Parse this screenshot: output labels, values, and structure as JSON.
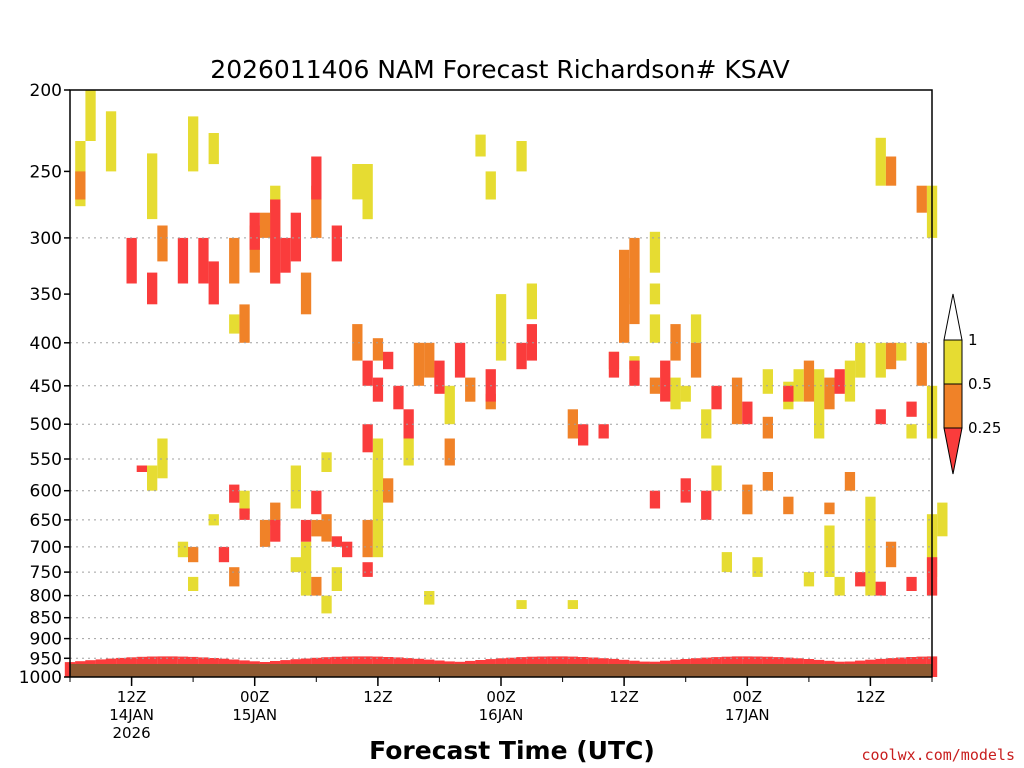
{
  "chart_data": {
    "type": "heatmap",
    "title": "2026011406 NAM Forecast Richardson# KSAV",
    "xlabel": "Forecast Time (UTC)",
    "credit": "coolwx.com/models",
    "y_scale": "log",
    "y_range": [
      1000,
      200
    ],
    "y_ticks": [
      200,
      250,
      300,
      350,
      400,
      450,
      500,
      550,
      600,
      650,
      700,
      750,
      800,
      850,
      900,
      950,
      1000
    ],
    "y_grid": [
      300,
      400,
      450,
      500,
      550,
      600,
      650,
      700,
      750,
      800,
      850,
      900,
      950
    ],
    "x_ticks": [
      {
        "hour": 6,
        "lines": [
          "12Z",
          "14JAN",
          "2026"
        ]
      },
      {
        "hour": 18,
        "lines": [
          "00Z",
          "15JAN"
        ]
      },
      {
        "hour": 30,
        "lines": [
          "12Z"
        ]
      },
      {
        "hour": 42,
        "lines": [
          "00Z",
          "16JAN"
        ]
      },
      {
        "hour": 54,
        "lines": [
          "12Z"
        ]
      },
      {
        "hour": 66,
        "lines": [
          "00Z",
          "17JAN"
        ]
      },
      {
        "hour": 78,
        "lines": [
          "12Z"
        ]
      }
    ],
    "x_range_hours": [
      0,
      84
    ],
    "legend": {
      "placement": "right",
      "levels": [
        "1",
        "0.5",
        "0.25"
      ],
      "colors": {
        "gt1": "#ffffff",
        "0.5-1": "#e6dc32",
        "0.25-0.5": "#f08228",
        "lt0.25": "#fa3c3c"
      }
    },
    "ground_color": "#8c5a32",
    "cells": [
      {
        "c": "Y",
        "t": [
          [
            2,
            200,
            230
          ],
          [
            4,
            212,
            250
          ],
          [
            1,
            230,
            275
          ],
          [
            8,
            238,
            285
          ],
          [
            12,
            215,
            250
          ],
          [
            14,
            225,
            245
          ],
          [
            20,
            260,
            300
          ],
          [
            28,
            245,
            270
          ],
          [
            29,
            245,
            285
          ],
          [
            16,
            370,
            390
          ],
          [
            40,
            226,
            240
          ],
          [
            57,
            295,
            330
          ],
          [
            54,
            335,
            360
          ],
          [
            57,
            340,
            360
          ],
          [
            42,
            350,
            420
          ],
          [
            45,
            340,
            375
          ],
          [
            37,
            450,
            500
          ],
          [
            33,
            520,
            560
          ],
          [
            30,
            520,
            600
          ],
          [
            25,
            540,
            570
          ],
          [
            22,
            560,
            630
          ],
          [
            17,
            600,
            640
          ],
          [
            14,
            640,
            660
          ],
          [
            11,
            690,
            720
          ],
          [
            23,
            690,
            800
          ],
          [
            30,
            550,
            720
          ],
          [
            26,
            740,
            790
          ],
          [
            22,
            720,
            750
          ],
          [
            55,
            415,
            430
          ],
          [
            59,
            440,
            480
          ],
          [
            60,
            450,
            470
          ],
          [
            62,
            480,
            520
          ],
          [
            63,
            560,
            600
          ],
          [
            70,
            445,
            480
          ],
          [
            73,
            430,
            520
          ],
          [
            76,
            420,
            470
          ],
          [
            77,
            400,
            440
          ],
          [
            79,
            400,
            440
          ],
          [
            81,
            400,
            420
          ],
          [
            84,
            450,
            520
          ],
          [
            84,
            260,
            300
          ],
          [
            79,
            228,
            260
          ],
          [
            78,
            610,
            800
          ],
          [
            74,
            660,
            760
          ],
          [
            84,
            640,
            760
          ],
          [
            64,
            710,
            750
          ],
          [
            67,
            720,
            760
          ],
          [
            72,
            750,
            780
          ],
          [
            75,
            760,
            800
          ],
          [
            35,
            790,
            820
          ],
          [
            44,
            810,
            830
          ],
          [
            49,
            810,
            830
          ],
          [
            25,
            800,
            840
          ],
          [
            41,
            250,
            270
          ],
          [
            44,
            230,
            250
          ],
          [
            57,
            370,
            400
          ],
          [
            61,
            370,
            400
          ],
          [
            71,
            430,
            470
          ],
          [
            82,
            500,
            520
          ],
          [
            12,
            760,
            790
          ],
          [
            9,
            520,
            580
          ],
          [
            8,
            560,
            600
          ],
          [
            68,
            430,
            460
          ],
          [
            85,
            620,
            680
          ]
        ]
      },
      {
        "c": "O",
        "t": [
          [
            1,
            250,
            270
          ],
          [
            9,
            290,
            320
          ],
          [
            19,
            280,
            300
          ],
          [
            18,
            290,
            330
          ],
          [
            23,
            330,
            370
          ],
          [
            24,
            260,
            300
          ],
          [
            30,
            395,
            420
          ],
          [
            34,
            400,
            450
          ],
          [
            35,
            400,
            440
          ],
          [
            37,
            520,
            560
          ],
          [
            29,
            650,
            720
          ],
          [
            24,
            650,
            680
          ],
          [
            20,
            620,
            660
          ],
          [
            19,
            650,
            700
          ],
          [
            12,
            700,
            730
          ],
          [
            16,
            740,
            780
          ],
          [
            24,
            760,
            800
          ],
          [
            55,
            300,
            380
          ],
          [
            54,
            310,
            400
          ],
          [
            59,
            380,
            420
          ],
          [
            61,
            400,
            440
          ],
          [
            65,
            440,
            500
          ],
          [
            68,
            490,
            520
          ],
          [
            72,
            420,
            470
          ],
          [
            74,
            440,
            480
          ],
          [
            83,
            400,
            450
          ],
          [
            80,
            400,
            430
          ],
          [
            83,
            260,
            280
          ],
          [
            80,
            240,
            260
          ],
          [
            66,
            590,
            640
          ],
          [
            70,
            610,
            640
          ],
          [
            74,
            620,
            640
          ],
          [
            68,
            570,
            600
          ],
          [
            76,
            570,
            600
          ],
          [
            80,
            690,
            740
          ],
          [
            16,
            300,
            340
          ],
          [
            17,
            360,
            400
          ],
          [
            28,
            380,
            420
          ],
          [
            39,
            440,
            470
          ],
          [
            41,
            460,
            480
          ],
          [
            49,
            480,
            520
          ],
          [
            53,
            410,
            430
          ],
          [
            57,
            440,
            460
          ],
          [
            31,
            580,
            620
          ],
          [
            25,
            640,
            690
          ]
        ]
      },
      {
        "c": "R",
        "t": [
          [
            6,
            300,
            340
          ],
          [
            8,
            330,
            360
          ],
          [
            11,
            300,
            340
          ],
          [
            13,
            300,
            340
          ],
          [
            14,
            320,
            360
          ],
          [
            18,
            280,
            310
          ],
          [
            20,
            270,
            340
          ],
          [
            21,
            300,
            330
          ],
          [
            22,
            280,
            320
          ],
          [
            24,
            240,
            270
          ],
          [
            26,
            290,
            320
          ],
          [
            29,
            420,
            450
          ],
          [
            30,
            440,
            470
          ],
          [
            31,
            410,
            430
          ],
          [
            36,
            420,
            460
          ],
          [
            38,
            400,
            440
          ],
          [
            33,
            480,
            520
          ],
          [
            29,
            500,
            540
          ],
          [
            32,
            450,
            480
          ],
          [
            41,
            430,
            470
          ],
          [
            44,
            400,
            430
          ],
          [
            45,
            380,
            420
          ],
          [
            50,
            500,
            530
          ],
          [
            52,
            500,
            520
          ],
          [
            53,
            410,
            440
          ],
          [
            55,
            420,
            450
          ],
          [
            58,
            420,
            470
          ],
          [
            63,
            450,
            480
          ],
          [
            66,
            470,
            500
          ],
          [
            70,
            450,
            470
          ],
          [
            75,
            430,
            460
          ],
          [
            79,
            480,
            500
          ],
          [
            82,
            470,
            490
          ],
          [
            16,
            590,
            620
          ],
          [
            17,
            630,
            650
          ],
          [
            20,
            650,
            690
          ],
          [
            23,
            650,
            690
          ],
          [
            24,
            600,
            640
          ],
          [
            26,
            680,
            700
          ],
          [
            27,
            690,
            720
          ],
          [
            29,
            730,
            760
          ],
          [
            15,
            700,
            730
          ],
          [
            7,
            560,
            570
          ],
          [
            57,
            600,
            630
          ],
          [
            60,
            580,
            620
          ],
          [
            62,
            600,
            650
          ],
          [
            77,
            750,
            780
          ],
          [
            79,
            770,
            800
          ],
          [
            82,
            760,
            790
          ],
          [
            84,
            720,
            800
          ]
        ]
      }
    ]
  }
}
